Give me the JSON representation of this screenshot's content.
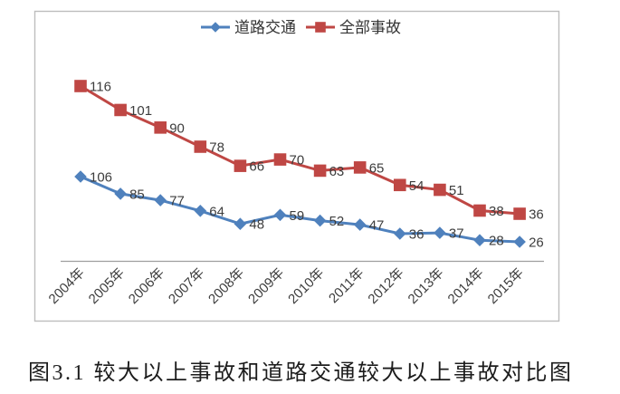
{
  "chart_data": {
    "type": "line",
    "title": "",
    "xlabel": "",
    "ylabel": "",
    "grid": false,
    "legend_position": "top",
    "data_labels": true,
    "categories": [
      "2004年",
      "2005年",
      "2006年",
      "2007年",
      "2008年",
      "2009年",
      "2010年",
      "2011年",
      "2012年",
      "2013年",
      "2014年",
      "2015年"
    ],
    "series": [
      {
        "id": "road-traffic",
        "name": "道路交通",
        "marker": "diamond",
        "color": "#4f81bd",
        "values": [
          106,
          85,
          77,
          64,
          48,
          59,
          52,
          47,
          36,
          37,
          28,
          26
        ]
      },
      {
        "id": "all-accidents",
        "name": "全部事故",
        "marker": "square",
        "color": "#bf4744",
        "values": [
          116,
          101,
          90,
          78,
          66,
          70,
          63,
          65,
          54,
          51,
          38,
          36
        ]
      }
    ]
  },
  "colors": {
    "label_text": "#3d3d3d",
    "legend_text": "#333333",
    "border": "#bdbdbd",
    "axis": "#9e9e9e"
  },
  "caption": "图3.1 较大以上事故和道路交通较大以上事故对比图"
}
